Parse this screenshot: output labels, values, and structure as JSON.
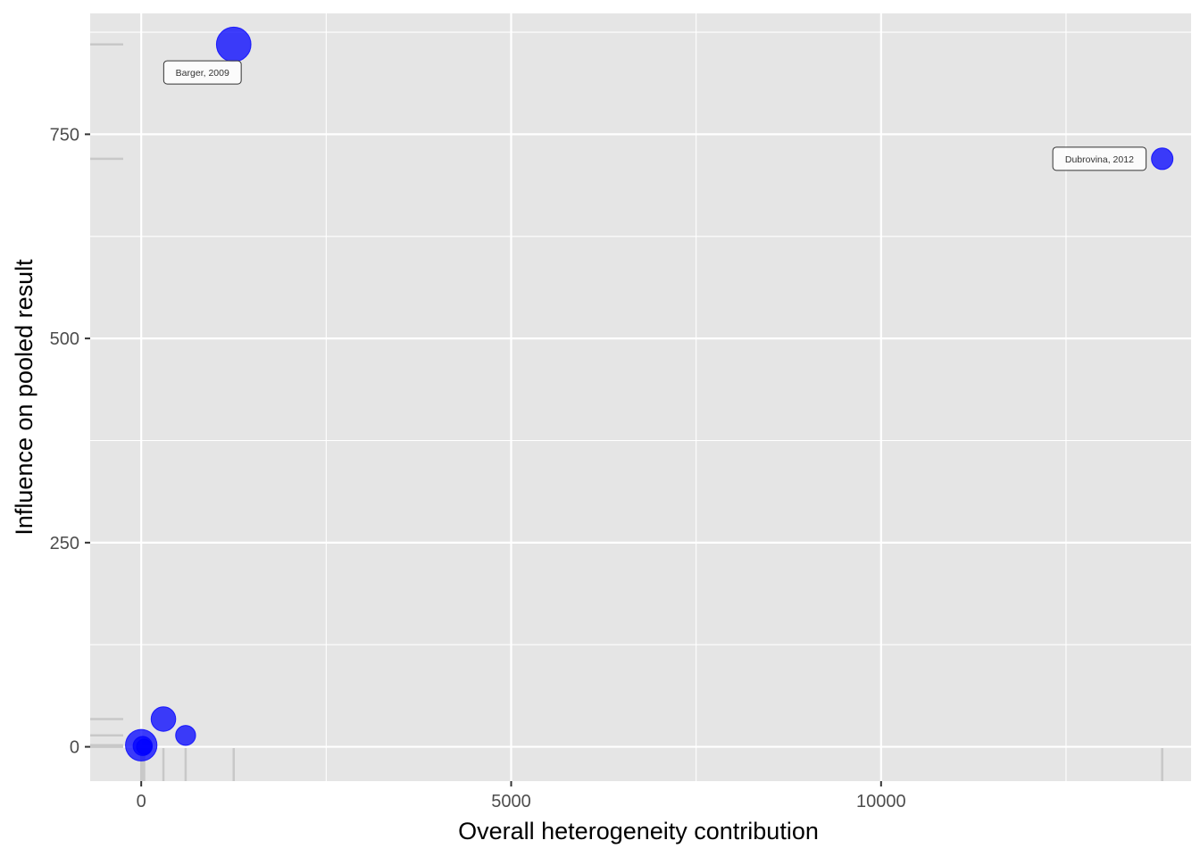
{
  "chart_data": {
    "type": "scatter",
    "title": "",
    "xlabel": "Overall heterogeneity contribution",
    "ylabel": "Influence on pooled result",
    "xlim": [
      -690,
      14190
    ],
    "ylim": [
      -42,
      898
    ],
    "x_ticks": [
      0,
      5000,
      10000
    ],
    "x_tick_labels": [
      "0",
      "5000",
      "10000"
    ],
    "y_ticks": [
      0,
      250,
      500,
      750
    ],
    "y_tick_labels": [
      "0",
      "250",
      "500",
      "750"
    ],
    "x_minor": [
      -2500,
      2500,
      7500,
      12500
    ],
    "y_minor": [
      125,
      375,
      625,
      875
    ],
    "grid": true,
    "legend": "none",
    "rug": true,
    "colors": {
      "panel": "#e5e5e5",
      "grid": "#ffffff",
      "point": "#0000ff",
      "rug": "#c8c8c8",
      "label_fill": "#ffffff",
      "label_border": "#333333"
    },
    "points": [
      {
        "x": 1250,
        "y": 860,
        "size": 4.5,
        "label": "Barger, 2009"
      },
      {
        "x": 13800,
        "y": 720,
        "size": 2.8,
        "label": "Dubrovina, 2012"
      },
      {
        "x": 300,
        "y": 34,
        "size": 3.2,
        "label": ""
      },
      {
        "x": 600,
        "y": 14,
        "size": 2.6,
        "label": ""
      },
      {
        "x": 0,
        "y": 2,
        "size": 4.1,
        "label": ""
      },
      {
        "x": 20,
        "y": 1,
        "size": 2.5,
        "label": ""
      },
      {
        "x": 40,
        "y": 0,
        "size": 2.0,
        "label": ""
      }
    ]
  }
}
